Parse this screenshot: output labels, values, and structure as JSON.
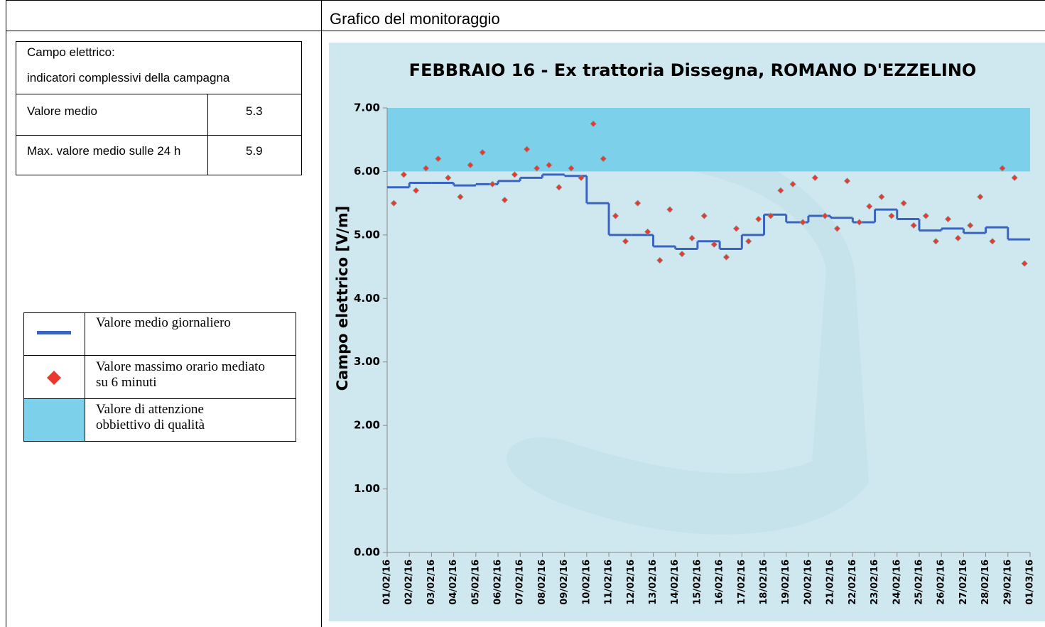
{
  "header": {
    "title": "Grafico del monitoraggio"
  },
  "summary": {
    "heading": "Campo elettrico:",
    "subheading": "indicatori complessivi della campagna",
    "rows": [
      [
        "Valore medio",
        5.3
      ],
      [
        "Max. valore medio sulle 24 h",
        5.9
      ]
    ]
  },
  "chart_data": {
    "type": "step-scatter",
    "title": "FEBBRAIO 16 - Ex trattoria Dissegna, ROMANO D'EZZELINO",
    "y_label": "Campo elettrico [V/m]",
    "categories": [
      "01/02/16",
      "02/02/16",
      "03/02/16",
      "04/02/16",
      "05/02/16",
      "06/02/16",
      "07/02/16",
      "08/02/16",
      "09/02/16",
      "10/02/16",
      "11/02/16",
      "12/02/16",
      "13/02/16",
      "14/02/16",
      "15/02/16",
      "16/02/16",
      "17/02/16",
      "18/02/16",
      "19/02/16",
      "20/02/16",
      "21/02/16",
      "22/02/16",
      "23/02/16",
      "24/02/16",
      "25/02/16",
      "26/02/16",
      "27/02/16",
      "28/02/16",
      "29/02/16",
      "01/03/16"
    ],
    "xlim": [
      0,
      29
    ],
    "ylim": [
      0,
      7
    ],
    "yticks": [
      {
        "value": 0,
        "label": "0.00"
      },
      {
        "value": 1,
        "label": "1.00"
      },
      {
        "value": 2,
        "label": "2.00"
      },
      {
        "value": 3,
        "label": "3.00"
      },
      {
        "value": 4,
        "label": "4.00"
      },
      {
        "value": 5,
        "label": "5.00"
      },
      {
        "value": 6,
        "label": "6.00"
      },
      {
        "value": 7,
        "label": "7.00"
      }
    ],
    "band": {
      "name": "Valore di attenzione obbiettivo di qualità",
      "color": "#7dd0ea",
      "from": 6,
      "to": 7
    },
    "series": [
      {
        "name": "Valore medio giornaliero",
        "color": "#3a64c0",
        "values": [
          5.75,
          5.82,
          5.82,
          5.78,
          5.8,
          5.85,
          5.9,
          5.95,
          5.93,
          5.5,
          5.0,
          5.0,
          4.82,
          4.78,
          4.9,
          4.78,
          5.0,
          5.32,
          5.2,
          5.3,
          5.27,
          5.2,
          5.4,
          5.25,
          5.07,
          5.1,
          5.03,
          5.12,
          4.93
        ]
      },
      {
        "name": "Valore massimo orario mediato su 6 minuti",
        "color": "#e8392c",
        "x": [
          0.3,
          0.75,
          1.3,
          1.75,
          2.3,
          2.75,
          3.3,
          3.75,
          4.3,
          4.75,
          5.3,
          5.75,
          6.3,
          6.75,
          7.3,
          7.75,
          8.3,
          8.75,
          9.3,
          9.75,
          10.3,
          10.75,
          11.3,
          11.75,
          12.3,
          12.75,
          13.3,
          13.75,
          14.3,
          14.75,
          15.3,
          15.75,
          16.3,
          16.75,
          17.3,
          17.75,
          18.3,
          18.75,
          19.3,
          19.75,
          20.3,
          20.75,
          21.3,
          21.75,
          22.3,
          22.75,
          23.3,
          23.75,
          24.3,
          24.75,
          25.3,
          25.75,
          26.3,
          26.75,
          27.3,
          27.75,
          28.3,
          28.75
        ],
        "values": [
          5.5,
          5.95,
          5.7,
          6.05,
          6.2,
          5.9,
          5.6,
          6.1,
          6.3,
          5.8,
          5.55,
          5.95,
          6.35,
          6.05,
          6.1,
          5.75,
          6.05,
          5.9,
          6.75,
          6.2,
          5.3,
          4.9,
          5.5,
          5.05,
          4.6,
          5.4,
          4.7,
          4.95,
          5.3,
          4.85,
          4.65,
          5.1,
          4.9,
          5.25,
          5.3,
          5.7,
          5.8,
          5.2,
          5.9,
          5.3,
          5.1,
          5.85,
          5.2,
          5.45,
          5.6,
          5.3,
          5.5,
          5.15,
          5.3,
          4.9,
          5.25,
          4.95,
          5.15,
          5.6,
          4.9,
          6.05,
          5.9,
          4.55
        ]
      }
    ]
  }
}
